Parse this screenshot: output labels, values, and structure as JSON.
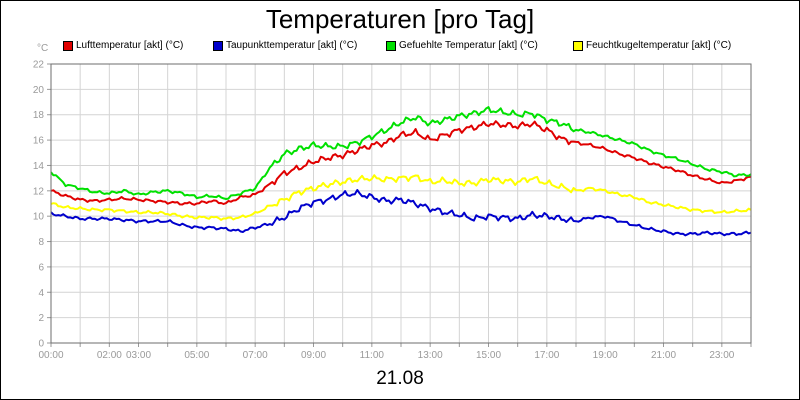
{
  "chart_data": {
    "type": "line",
    "title": "Temperaturen [pro Tag]",
    "xlabel": "21.08",
    "ylabel": "°C",
    "ylim": [
      0,
      22
    ],
    "yticks": [
      0,
      2,
      4,
      6,
      8,
      10,
      12,
      14,
      16,
      18,
      20,
      22
    ],
    "xlim": [
      0,
      24
    ],
    "xticks": [
      {
        "label": "00:00",
        "hour": 0
      },
      {
        "label": "02:00",
        "hour": 2
      },
      {
        "label": "03:00",
        "hour": 3
      },
      {
        "label": "05:00",
        "hour": 5
      },
      {
        "label": "07:00",
        "hour": 7
      },
      {
        "label": "09:00",
        "hour": 9
      },
      {
        "label": "11:00",
        "hour": 11
      },
      {
        "label": "13:00",
        "hour": 13
      },
      {
        "label": "15:00",
        "hour": 15
      },
      {
        "label": "17:00",
        "hour": 17
      },
      {
        "label": "19:00",
        "hour": 19
      },
      {
        "label": "21:00",
        "hour": 21
      },
      {
        "label": "23:00",
        "hour": 23
      }
    ],
    "grid": true,
    "legend_position": "top",
    "series": [
      {
        "name": "Lufttemperatur [akt] (°C)",
        "color": "#e00000",
        "x": [
          0,
          0.5,
          1,
          1.5,
          2,
          2.5,
          3,
          3.5,
          4,
          4.5,
          5,
          5.5,
          6,
          6.5,
          7,
          7.5,
          8,
          8.5,
          9,
          9.5,
          10,
          10.5,
          11,
          11.5,
          12,
          12.5,
          13,
          13.5,
          14,
          14.5,
          15,
          15.5,
          16,
          16.5,
          17,
          17.5,
          18,
          18.5,
          19,
          19.5,
          20,
          20.5,
          21,
          21.5,
          22,
          22.5,
          23,
          23.5,
          24
        ],
        "values": [
          12.0,
          11.6,
          11.3,
          11.2,
          11.3,
          11.4,
          11.3,
          11.2,
          11.1,
          11.0,
          11.0,
          11.2,
          11.0,
          11.5,
          11.7,
          12.5,
          13.4,
          13.8,
          14.3,
          14.6,
          14.8,
          15.2,
          15.6,
          15.8,
          16.4,
          16.6,
          16.0,
          16.4,
          16.8,
          17.0,
          17.3,
          17.2,
          17.1,
          17.3,
          16.8,
          16.1,
          15.8,
          15.6,
          15.3,
          14.9,
          14.6,
          14.2,
          13.9,
          13.6,
          13.2,
          12.9,
          12.6,
          12.8,
          13.1
        ]
      },
      {
        "name": "Taupunkttemperatur [akt] (°C)",
        "color": "#0000cc",
        "x": [
          0,
          0.5,
          1,
          1.5,
          2,
          2.5,
          3,
          3.5,
          4,
          4.5,
          5,
          5.5,
          6,
          6.5,
          7,
          7.5,
          8,
          8.5,
          9,
          9.5,
          10,
          10.5,
          11,
          11.5,
          12,
          12.5,
          13,
          13.5,
          14,
          14.5,
          15,
          15.5,
          16,
          16.5,
          17,
          17.5,
          18,
          18.5,
          19,
          19.5,
          20,
          20.5,
          21,
          21.5,
          22,
          22.5,
          23,
          23.5,
          24
        ],
        "values": [
          10.2,
          10.0,
          9.8,
          9.8,
          9.8,
          9.7,
          9.6,
          9.6,
          9.6,
          9.3,
          9.1,
          9.1,
          9.0,
          8.8,
          9.1,
          9.4,
          9.9,
          10.6,
          11.1,
          11.3,
          11.7,
          11.8,
          11.5,
          11.2,
          11.3,
          11.0,
          10.6,
          10.3,
          10.1,
          9.8,
          10.0,
          9.9,
          9.8,
          10.1,
          10.0,
          9.8,
          9.6,
          9.9,
          10.0,
          9.6,
          9.3,
          9.0,
          8.8,
          8.6,
          8.6,
          8.7,
          8.6,
          8.6,
          8.7
        ]
      },
      {
        "name": "Gefuehlte Temperatur [akt] (°C)",
        "color": "#00e000",
        "x": [
          0,
          0.5,
          1,
          1.5,
          2,
          2.5,
          3,
          3.5,
          4,
          4.5,
          5,
          5.5,
          6,
          6.5,
          7,
          7.5,
          8,
          8.5,
          9,
          9.5,
          10,
          10.5,
          11,
          11.5,
          12,
          12.5,
          13,
          13.5,
          14,
          14.5,
          15,
          15.5,
          16,
          16.5,
          17,
          17.5,
          18,
          18.5,
          19,
          19.5,
          20,
          20.5,
          21,
          21.5,
          22,
          22.5,
          23,
          23.5,
          24
        ],
        "values": [
          13.5,
          12.5,
          12.2,
          11.9,
          11.8,
          12.0,
          11.7,
          11.9,
          12.0,
          11.8,
          11.5,
          11.6,
          11.4,
          11.8,
          12.2,
          13.8,
          14.9,
          15.3,
          15.6,
          15.5,
          15.5,
          15.8,
          16.3,
          16.8,
          17.4,
          17.8,
          17.3,
          17.6,
          17.9,
          18.1,
          18.4,
          18.2,
          18.0,
          18.1,
          17.6,
          17.3,
          16.8,
          16.6,
          16.3,
          16.0,
          15.7,
          15.2,
          14.8,
          14.5,
          14.1,
          13.7,
          13.5,
          13.2,
          13.3
        ]
      },
      {
        "name": "Feuchtkugeltemperatur [akt] (°C)",
        "color": "#ffff00",
        "x": [
          0,
          0.5,
          1,
          1.5,
          2,
          2.5,
          3,
          3.5,
          4,
          4.5,
          5,
          5.5,
          6,
          6.5,
          7,
          7.5,
          8,
          8.5,
          9,
          9.5,
          10,
          10.5,
          11,
          11.5,
          12,
          12.5,
          13,
          13.5,
          14,
          14.5,
          15,
          15.5,
          16,
          16.5,
          17,
          17.5,
          18,
          18.5,
          19,
          19.5,
          20,
          20.5,
          21,
          21.5,
          22,
          22.5,
          23,
          23.5,
          24
        ],
        "values": [
          11.0,
          10.7,
          10.6,
          10.5,
          10.5,
          10.4,
          10.3,
          10.3,
          10.2,
          10.0,
          9.9,
          9.9,
          9.8,
          9.9,
          10.2,
          10.8,
          11.3,
          11.9,
          12.2,
          12.5,
          12.7,
          12.9,
          13.0,
          12.9,
          13.0,
          13.1,
          12.7,
          12.8,
          12.6,
          12.6,
          12.9,
          12.8,
          12.7,
          13.0,
          12.6,
          12.3,
          12.0,
          12.2,
          12.0,
          11.7,
          11.5,
          11.1,
          10.9,
          10.7,
          10.5,
          10.4,
          10.3,
          10.4,
          10.5
        ]
      }
    ]
  }
}
